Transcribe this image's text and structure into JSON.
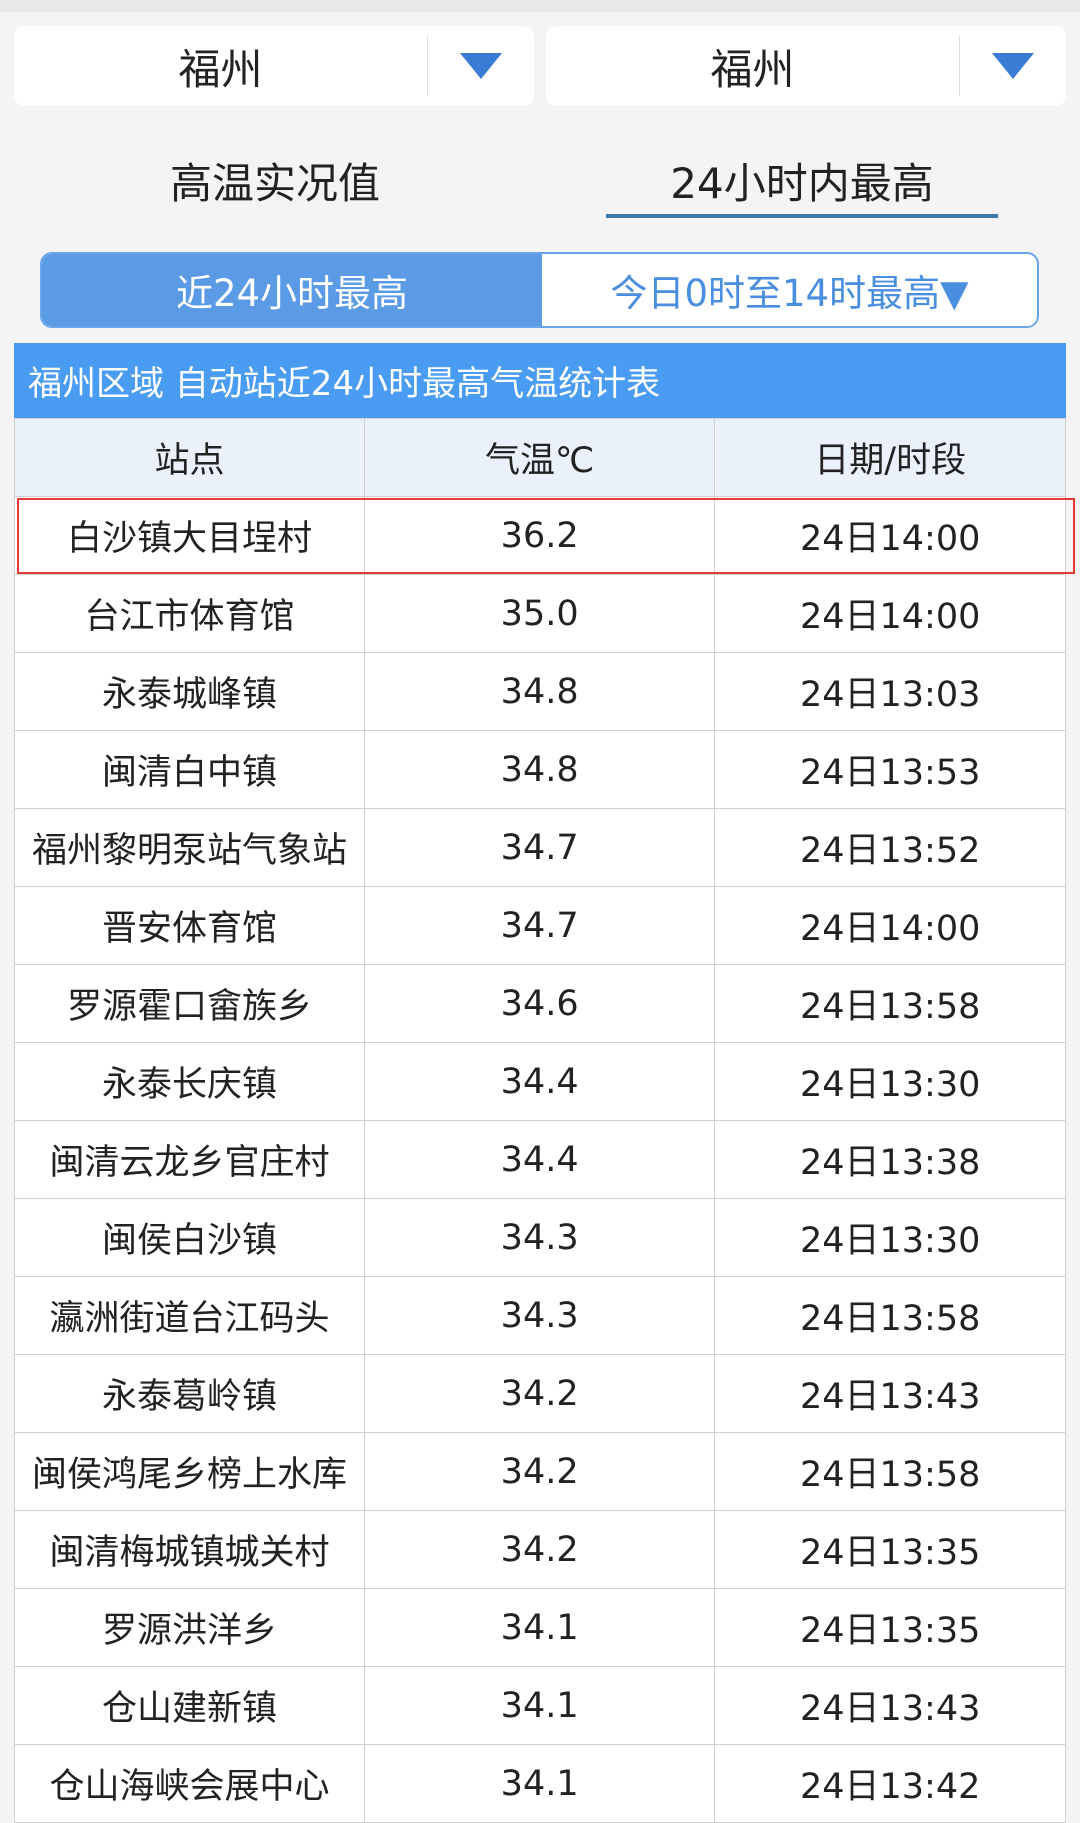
{
  "dropdowns": [
    {
      "value": "福州",
      "icon": "triangle-down-icon"
    },
    {
      "value": "福州",
      "icon": "triangle-down-icon"
    }
  ],
  "tabs": [
    {
      "label": "高温实况值",
      "active": false
    },
    {
      "label": "24小时内最高",
      "active": true
    }
  ],
  "segments": [
    {
      "label": "近24小时最高",
      "active": true
    },
    {
      "label": "今日0时至14时最高▼",
      "active": false
    }
  ],
  "table": {
    "title": "福州区域 自动站近24小时最高气温统计表",
    "headers": [
      "站点",
      "气温℃",
      "日期/时段"
    ],
    "rows": [
      [
        "白沙镇大目埕村",
        "36.2",
        "24日14:00"
      ],
      [
        "台江市体育馆",
        "35.0",
        "24日14:00"
      ],
      [
        "永泰城峰镇",
        "34.8",
        "24日13:03"
      ],
      [
        "闽清白中镇",
        "34.8",
        "24日13:53"
      ],
      [
        "福州黎明泵站气象站",
        "34.7",
        "24日13:52"
      ],
      [
        "晋安体育馆",
        "34.7",
        "24日14:00"
      ],
      [
        "罗源霍口畲族乡",
        "34.6",
        "24日13:58"
      ],
      [
        "永泰长庆镇",
        "34.4",
        "24日13:30"
      ],
      [
        "闽清云龙乡官庄村",
        "34.4",
        "24日13:38"
      ],
      [
        "闽侯白沙镇",
        "34.3",
        "24日13:30"
      ],
      [
        "瀛洲街道台江码头",
        "34.3",
        "24日13:58"
      ],
      [
        "永泰葛岭镇",
        "34.2",
        "24日13:43"
      ],
      [
        "闽侯鸿尾乡榜上水库",
        "34.2",
        "24日13:58"
      ],
      [
        "闽清梅城镇城关村",
        "34.2",
        "24日13:35"
      ],
      [
        "罗源洪洋乡",
        "34.1",
        "24日13:35"
      ],
      [
        "仓山建新镇",
        "34.1",
        "24日13:43"
      ],
      [
        "仓山海峡会展中心",
        "34.1",
        "24日13:42"
      ]
    ],
    "highlighted_row": 0,
    "highlight_color": "#e53935"
  },
  "colors": {
    "accent": "#4a9cf2",
    "segment_active": "#5b9be6"
  }
}
